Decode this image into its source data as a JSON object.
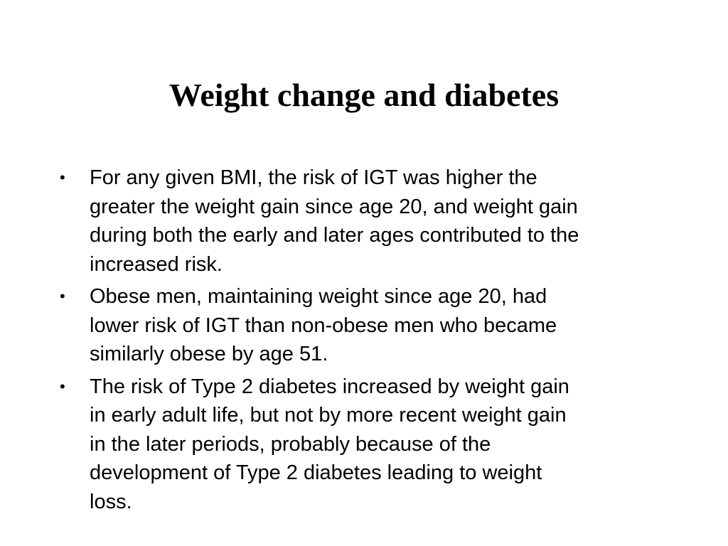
{
  "slide": {
    "title": "Weight change and diabetes",
    "bullets": [
      {
        "text": "For any given BMI, the risk of IGT was higher the\ngreater the weight gain since age 20, and weight gain\nduring both the early and later ages contributed to the\nincreased risk."
      },
      {
        "text": "Obese men, maintaining weight since age 20, had\nlower risk of IGT than non-obese men who became\nsimilarly obese by age 51."
      },
      {
        "text": "The risk of Type 2 diabetes increased by weight gain\nin early adult life, but not by more recent weight gain\nin the later periods, probably because of the\ndevelopment of Type 2 diabetes leading to weight\nloss."
      }
    ]
  }
}
